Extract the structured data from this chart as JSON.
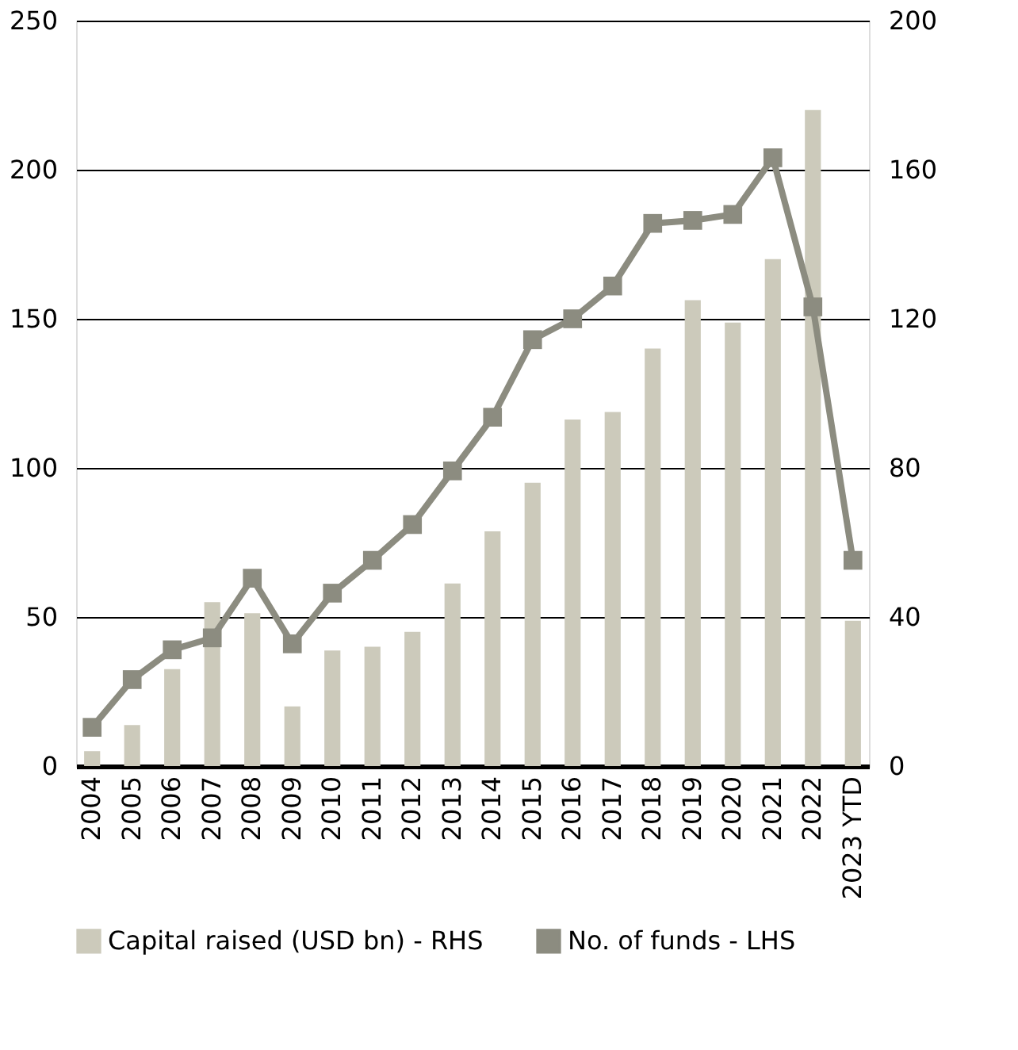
{
  "chart_data": {
    "type": "bar",
    "categories": [
      "2004",
      "2005",
      "2006",
      "2007",
      "2008",
      "2009",
      "2010",
      "2011",
      "2012",
      "2013",
      "2014",
      "2015",
      "2016",
      "2017",
      "2018",
      "2019",
      "2020",
      "2021",
      "2022",
      "2023 YTD"
    ],
    "series": [
      {
        "name": "Capital raised (USD bn) - RHS",
        "axis": "y2",
        "color": "#cccabb",
        "values": [
          4,
          11,
          26,
          44,
          41,
          16,
          31,
          32,
          36,
          49,
          63,
          76,
          93,
          95,
          112,
          125,
          119,
          136,
          176,
          39
        ]
      },
      {
        "name": "No. of funds - LHS",
        "type": "line",
        "color": "#8c8c80",
        "values": [
          13,
          29,
          39,
          43,
          63,
          41,
          58,
          69,
          81,
          99,
          117,
          143,
          150,
          161,
          182,
          183,
          185,
          204,
          154,
          69
        ]
      }
    ],
    "ylim": [
      0,
      250
    ],
    "yticks": [
      0,
      50,
      100,
      150,
      200,
      250
    ],
    "y2lim": [
      0,
      200
    ],
    "y2ticks": [
      0,
      40,
      80,
      120,
      160,
      200
    ],
    "grid": "y",
    "legend": "bottom",
    "marker": "square",
    "line_style": "solid"
  }
}
